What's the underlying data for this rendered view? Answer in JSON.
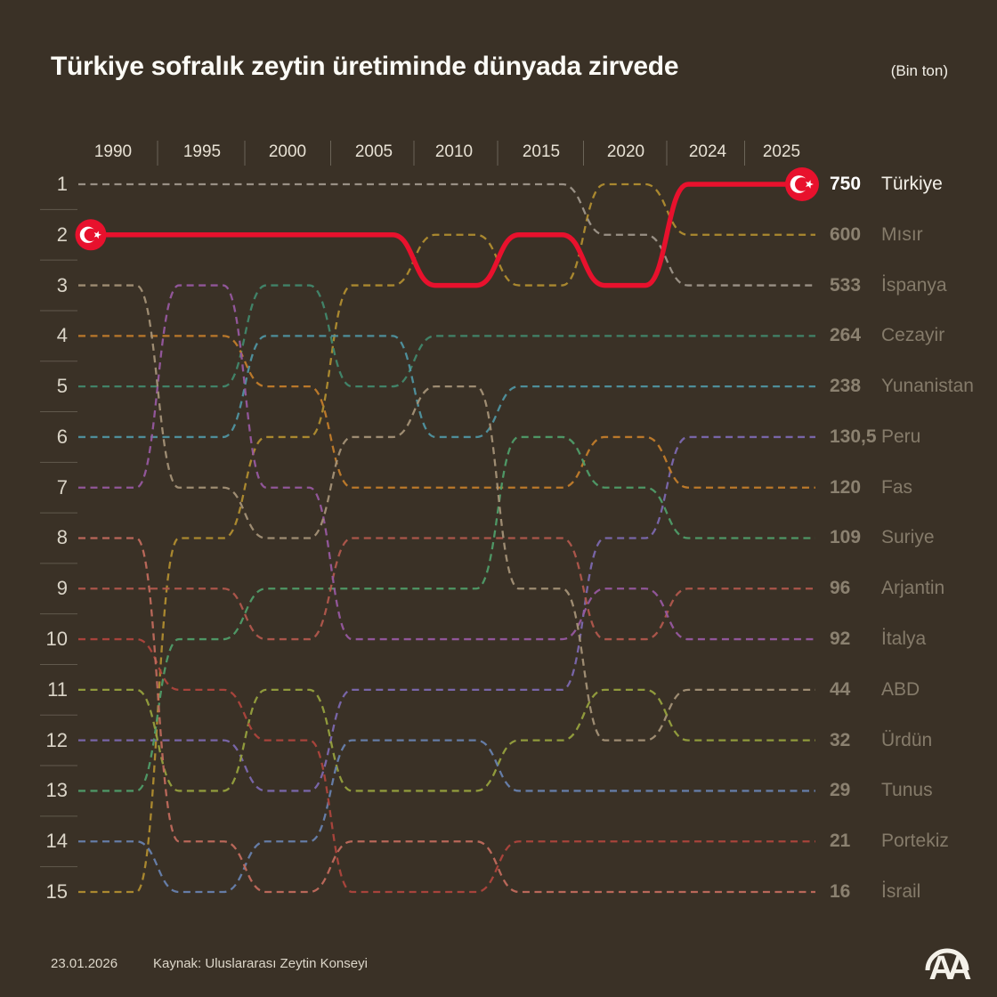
{
  "header": {
    "title": "Türkiye sofralık zeytin üretiminde dünyada zirvede",
    "unit": "(Bin ton)"
  },
  "chart_data": {
    "type": "bump",
    "title": "Türkiye sofralık zeytin üretiminde dünyada zirvede",
    "unit": "Bin ton",
    "years": [
      "1990",
      "1995",
      "2000",
      "2005",
      "2010",
      "2015",
      "2020",
      "2024",
      "2025"
    ],
    "rank_labels": [
      "1",
      "2",
      "3",
      "4",
      "5",
      "6",
      "7",
      "8",
      "9",
      "10",
      "11",
      "12",
      "13",
      "14",
      "15"
    ],
    "legend_position": "right",
    "series": [
      {
        "name": "Türkiye",
        "value": "750",
        "color": "#e8112d",
        "highlight": true,
        "ranks": [
          2,
          2,
          2,
          2,
          3,
          2,
          3,
          1,
          1
        ]
      },
      {
        "name": "Mısır",
        "value": "600",
        "color": "#b08d2f",
        "highlight": false,
        "ranks": [
          15,
          8,
          6,
          3,
          2,
          3,
          1,
          2,
          2
        ]
      },
      {
        "name": "İspanya",
        "value": "533",
        "color": "#9e968a",
        "highlight": false,
        "ranks": [
          1,
          1,
          1,
          1,
          1,
          1,
          2,
          3,
          3
        ]
      },
      {
        "name": "Cezayir",
        "value": "264",
        "color": "#41876b",
        "highlight": false,
        "ranks": [
          5,
          5,
          3,
          5,
          4,
          4,
          4,
          4,
          4
        ]
      },
      {
        "name": "Yunanistan",
        "value": "238",
        "color": "#4f93a0",
        "highlight": false,
        "ranks": [
          6,
          6,
          4,
          4,
          6,
          5,
          5,
          5,
          5
        ]
      },
      {
        "name": "Peru",
        "value": "130,5",
        "color": "#7b68ae",
        "highlight": false,
        "ranks": [
          12,
          12,
          13,
          11,
          11,
          11,
          8,
          6,
          6
        ]
      },
      {
        "name": "Fas",
        "value": "120",
        "color": "#c17c2a",
        "highlight": false,
        "ranks": [
          4,
          4,
          5,
          7,
          7,
          7,
          6,
          7,
          7
        ]
      },
      {
        "name": "Suriye",
        "value": "109",
        "color": "#4f9c68",
        "highlight": false,
        "ranks": [
          13,
          10,
          9,
          9,
          9,
          6,
          7,
          8,
          8
        ]
      },
      {
        "name": "Arjantin",
        "value": "96",
        "color": "#b0574c",
        "highlight": false,
        "ranks": [
          9,
          9,
          10,
          8,
          8,
          8,
          10,
          9,
          9
        ]
      },
      {
        "name": "İtalya",
        "value": "92",
        "color": "#96599f",
        "highlight": false,
        "ranks": [
          7,
          3,
          7,
          10,
          10,
          10,
          9,
          10,
          10
        ]
      },
      {
        "name": "ABD",
        "value": "44",
        "color": "#a39176",
        "highlight": false,
        "ranks": [
          3,
          7,
          8,
          6,
          5,
          9,
          12,
          11,
          11
        ]
      },
      {
        "name": "Ürdün",
        "value": "32",
        "color": "#95a03d",
        "highlight": false,
        "ranks": [
          11,
          13,
          11,
          13,
          13,
          12,
          11,
          12,
          12
        ]
      },
      {
        "name": "Tunus",
        "value": "29",
        "color": "#6781ad",
        "highlight": false,
        "ranks": [
          14,
          15,
          14,
          12,
          12,
          13,
          13,
          13,
          13
        ]
      },
      {
        "name": "Portekiz",
        "value": "21",
        "color": "#ad453c",
        "highlight": false,
        "ranks": [
          10,
          11,
          12,
          15,
          15,
          14,
          14,
          14,
          14
        ]
      },
      {
        "name": "İsrail",
        "value": "16",
        "color": "#c06a5c",
        "highlight": false,
        "ranks": [
          8,
          14,
          15,
          14,
          14,
          15,
          15,
          15,
          15
        ]
      }
    ]
  },
  "footer": {
    "date": "23.01.2026",
    "source": "Kaynak: Uluslararası Zeytin Konseyi",
    "logo": "AA"
  },
  "colors": {
    "background": "#3a3126",
    "title_text": "#fcfbf6",
    "axis_text": "#e7e1d4",
    "legend_text": "#857b6a",
    "highlight_red": "#e8112d"
  }
}
